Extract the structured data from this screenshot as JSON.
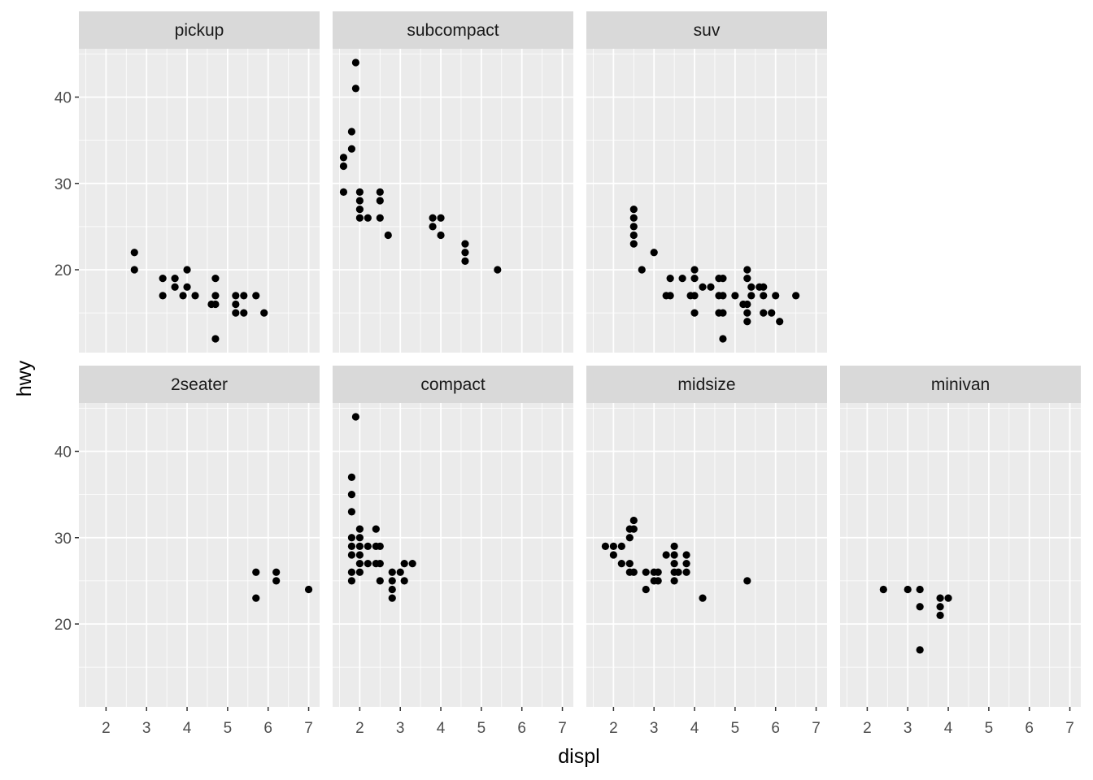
{
  "chart_data": {
    "type": "scatter",
    "xlabel": "displ",
    "ylabel": "hwy",
    "xlim": [
      1.33,
      7.27
    ],
    "ylim": [
      10.4,
      45.6
    ],
    "x_ticks": [
      2,
      3,
      4,
      5,
      6,
      7
    ],
    "y_ticks": [
      20,
      30,
      40
    ],
    "grid": true,
    "point_color": "#000000",
    "panel_background": "#ebebeb",
    "strip_background": "#d9d9d9",
    "facets": [
      {
        "name": "pickup",
        "points": [
          [
            2.7,
            20
          ],
          [
            2.7,
            22
          ],
          [
            3.4,
            17
          ],
          [
            3.4,
            19
          ],
          [
            3.7,
            18
          ],
          [
            3.7,
            19
          ],
          [
            3.9,
            17
          ],
          [
            4.0,
            18
          ],
          [
            4.0,
            20
          ],
          [
            4.2,
            17
          ],
          [
            4.6,
            16
          ],
          [
            4.7,
            12
          ],
          [
            4.7,
            16
          ],
          [
            4.7,
            17
          ],
          [
            4.7,
            19
          ],
          [
            5.2,
            15
          ],
          [
            5.2,
            16
          ],
          [
            5.2,
            17
          ],
          [
            5.4,
            15
          ],
          [
            5.4,
            17
          ],
          [
            5.7,
            17
          ],
          [
            5.9,
            15
          ]
        ]
      },
      {
        "name": "subcompact",
        "points": [
          [
            1.6,
            29
          ],
          [
            1.6,
            32
          ],
          [
            1.6,
            33
          ],
          [
            1.8,
            34
          ],
          [
            1.8,
            36
          ],
          [
            1.9,
            41
          ],
          [
            1.9,
            44
          ],
          [
            2.0,
            26
          ],
          [
            2.0,
            27
          ],
          [
            2.0,
            28
          ],
          [
            2.0,
            29
          ],
          [
            2.2,
            26
          ],
          [
            2.5,
            26
          ],
          [
            2.5,
            28
          ],
          [
            2.5,
            29
          ],
          [
            2.7,
            24
          ],
          [
            3.8,
            25
          ],
          [
            3.8,
            26
          ],
          [
            4.0,
            24
          ],
          [
            4.0,
            26
          ],
          [
            4.6,
            21
          ],
          [
            4.6,
            22
          ],
          [
            4.6,
            23
          ],
          [
            5.4,
            20
          ]
        ]
      },
      {
        "name": "suv",
        "points": [
          [
            2.5,
            23
          ],
          [
            2.5,
            24
          ],
          [
            2.5,
            25
          ],
          [
            2.5,
            26
          ],
          [
            2.5,
            27
          ],
          [
            2.7,
            20
          ],
          [
            3.0,
            22
          ],
          [
            3.3,
            17
          ],
          [
            3.4,
            17
          ],
          [
            3.4,
            19
          ],
          [
            3.7,
            19
          ],
          [
            3.9,
            17
          ],
          [
            4.0,
            15
          ],
          [
            4.0,
            17
          ],
          [
            4.0,
            19
          ],
          [
            4.0,
            20
          ],
          [
            4.2,
            18
          ],
          [
            4.4,
            18
          ],
          [
            4.6,
            15
          ],
          [
            4.6,
            17
          ],
          [
            4.6,
            19
          ],
          [
            4.7,
            12
          ],
          [
            4.7,
            15
          ],
          [
            4.7,
            17
          ],
          [
            4.7,
            19
          ],
          [
            5.0,
            17
          ],
          [
            5.2,
            16
          ],
          [
            5.3,
            14
          ],
          [
            5.3,
            15
          ],
          [
            5.3,
            16
          ],
          [
            5.3,
            19
          ],
          [
            5.3,
            20
          ],
          [
            5.4,
            17
          ],
          [
            5.4,
            18
          ],
          [
            5.6,
            18
          ],
          [
            5.7,
            15
          ],
          [
            5.7,
            17
          ],
          [
            5.7,
            18
          ],
          [
            5.9,
            15
          ],
          [
            6.0,
            17
          ],
          [
            6.1,
            14
          ],
          [
            6.5,
            17
          ]
        ]
      },
      {
        "name": "2seater",
        "points": [
          [
            5.7,
            23
          ],
          [
            5.7,
            26
          ],
          [
            6.2,
            25
          ],
          [
            6.2,
            26
          ],
          [
            7.0,
            24
          ]
        ]
      },
      {
        "name": "compact",
        "points": [
          [
            1.8,
            25
          ],
          [
            1.8,
            26
          ],
          [
            1.8,
            28
          ],
          [
            1.8,
            29
          ],
          [
            1.8,
            30
          ],
          [
            1.8,
            33
          ],
          [
            1.8,
            35
          ],
          [
            1.8,
            37
          ],
          [
            1.9,
            44
          ],
          [
            2.0,
            26
          ],
          [
            2.0,
            27
          ],
          [
            2.0,
            28
          ],
          [
            2.0,
            29
          ],
          [
            2.0,
            30
          ],
          [
            2.0,
            31
          ],
          [
            2.2,
            27
          ],
          [
            2.2,
            29
          ],
          [
            2.4,
            27
          ],
          [
            2.4,
            29
          ],
          [
            2.4,
            31
          ],
          [
            2.5,
            25
          ],
          [
            2.5,
            27
          ],
          [
            2.5,
            29
          ],
          [
            2.8,
            23
          ],
          [
            2.8,
            24
          ],
          [
            2.8,
            25
          ],
          [
            2.8,
            26
          ],
          [
            3.0,
            26
          ],
          [
            3.1,
            25
          ],
          [
            3.1,
            27
          ],
          [
            3.3,
            27
          ]
        ]
      },
      {
        "name": "midsize",
        "points": [
          [
            1.8,
            29
          ],
          [
            2.0,
            28
          ],
          [
            2.0,
            29
          ],
          [
            2.2,
            27
          ],
          [
            2.2,
            29
          ],
          [
            2.4,
            26
          ],
          [
            2.4,
            27
          ],
          [
            2.4,
            30
          ],
          [
            2.4,
            31
          ],
          [
            2.5,
            26
          ],
          [
            2.5,
            31
          ],
          [
            2.5,
            32
          ],
          [
            2.8,
            24
          ],
          [
            2.8,
            26
          ],
          [
            3.0,
            25
          ],
          [
            3.0,
            26
          ],
          [
            3.1,
            25
          ],
          [
            3.1,
            26
          ],
          [
            3.3,
            28
          ],
          [
            3.5,
            25
          ],
          [
            3.5,
            26
          ],
          [
            3.5,
            27
          ],
          [
            3.5,
            28
          ],
          [
            3.5,
            29
          ],
          [
            3.6,
            26
          ],
          [
            3.8,
            26
          ],
          [
            3.8,
            27
          ],
          [
            3.8,
            28
          ],
          [
            4.2,
            23
          ],
          [
            5.3,
            25
          ]
        ]
      },
      {
        "name": "minivan",
        "points": [
          [
            2.4,
            24
          ],
          [
            3.0,
            24
          ],
          [
            3.3,
            17
          ],
          [
            3.3,
            22
          ],
          [
            3.3,
            24
          ],
          [
            3.8,
            21
          ],
          [
            3.8,
            22
          ],
          [
            3.8,
            23
          ],
          [
            4.0,
            23
          ]
        ]
      }
    ]
  }
}
